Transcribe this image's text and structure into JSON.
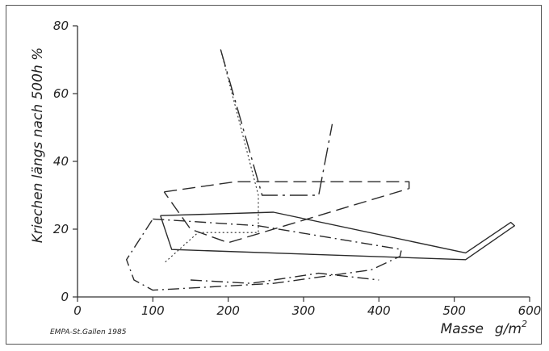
{
  "chart_data": {
    "type": "line",
    "xlabel": "Masse",
    "xlabel_unit": "g/m",
    "xlabel_unit_sup": "2",
    "ylabel": "Kriechen längs nach 500h %",
    "credit": "EMPA-St.Gallen 1985",
    "xlim": [
      0,
      600
    ],
    "ylim": [
      0,
      80
    ],
    "xticks": [
      0,
      100,
      200,
      300,
      400,
      500,
      600
    ],
    "yticks": [
      0,
      20,
      40,
      60,
      80
    ],
    "grid": false,
    "legend": "none",
    "series": [
      {
        "style": "solid",
        "points": [
          [
            110,
            24
          ],
          [
            260,
            25
          ],
          [
            515,
            13
          ],
          [
            575,
            22
          ],
          [
            580,
            21
          ],
          [
            515,
            11
          ],
          [
            125,
            14
          ],
          [
            110,
            24
          ]
        ]
      },
      {
        "style": "long-dash",
        "points": [
          [
            190,
            73
          ],
          [
            245,
            30
          ],
          [
            260,
            30
          ],
          [
            320,
            30
          ],
          [
            338,
            51
          ]
        ]
      },
      {
        "style": "dash",
        "points": [
          [
            115,
            31
          ],
          [
            210,
            34
          ],
          [
            440,
            34
          ],
          [
            440,
            32
          ],
          [
            200,
            16
          ],
          [
            150,
            20
          ],
          [
            115,
            31
          ]
        ]
      },
      {
        "style": "dash-dot",
        "points": [
          [
            100,
            23
          ],
          [
            240,
            21
          ],
          [
            430,
            14
          ],
          [
            428,
            12
          ],
          [
            390,
            8
          ],
          [
            260,
            4
          ],
          [
            100,
            2
          ],
          [
            75,
            5
          ],
          [
            65,
            11
          ],
          [
            100,
            23
          ]
        ]
      },
      {
        "style": "dotted",
        "points": [
          [
            190,
            73
          ],
          [
            240,
            30
          ],
          [
            240,
            19
          ],
          [
            160,
            19
          ],
          [
            135,
            14
          ],
          [
            115,
            10
          ]
        ]
      },
      {
        "style": "dash-dot",
        "points": [
          [
            150,
            5
          ],
          [
            230,
            4
          ],
          [
            320,
            7
          ],
          [
            400,
            5
          ]
        ]
      }
    ]
  }
}
